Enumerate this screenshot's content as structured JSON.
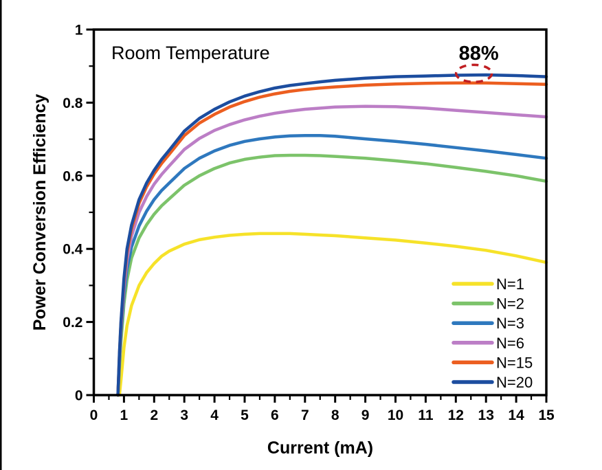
{
  "figure": {
    "background_color": "#ffffff",
    "left_edge_bar_color": "#000000",
    "axis_color": "#000000"
  },
  "chart_data": {
    "type": "line",
    "title": "",
    "xlabel": "Current (mA)",
    "ylabel": "Power Conversion Efficiency",
    "xlim": [
      0,
      15
    ],
    "ylim": [
      0,
      1
    ],
    "grid": false,
    "x_major_ticks": [
      0,
      1,
      2,
      3,
      4,
      5,
      6,
      7,
      8,
      9,
      10,
      11,
      12,
      13,
      14,
      15
    ],
    "x_tick_labels": [
      "0",
      "1",
      "2",
      "3",
      "4",
      "5",
      "6",
      "7",
      "8",
      "9",
      "10",
      "11",
      "12",
      "13",
      "14",
      "15"
    ],
    "x_minor_ticks": [
      0.5,
      1.5,
      2.5,
      3.5,
      4.5,
      5.5,
      6.5,
      7.5,
      8.5,
      9.5,
      10.5,
      11.5,
      12.5,
      13.5,
      14.5
    ],
    "y_major_ticks": [
      0,
      0.2,
      0.4,
      0.6,
      0.8,
      1
    ],
    "y_tick_labels": [
      "0",
      "0.2",
      "0.4",
      "0.6",
      "0.8",
      "1"
    ],
    "y_minor_ticks": [
      0.1,
      0.3,
      0.5,
      0.7,
      0.9
    ],
    "legend_position": "lower-right-inside",
    "annotations": {
      "room_temperature": "Room Temperature",
      "efficiency_label": "88%",
      "efficiency_point": {
        "x": 12.6,
        "y": 0.88
      },
      "callout_color": "#c01f23"
    },
    "x": [
      0.8,
      0.85,
      0.9,
      1.0,
      1.1,
      1.25,
      1.5,
      1.75,
      2.0,
      2.25,
      2.5,
      3.0,
      3.5,
      4.0,
      4.5,
      5.0,
      5.5,
      6.0,
      6.5,
      7.0,
      7.5,
      8.0,
      9.0,
      10,
      11,
      12,
      13,
      14,
      15
    ],
    "series": [
      {
        "name": "N=1",
        "color": "#f6e229",
        "values": [
          0,
          0,
          0.04,
          0.13,
          0.19,
          0.245,
          0.3,
          0.335,
          0.36,
          0.38,
          0.394,
          0.413,
          0.425,
          0.432,
          0.437,
          0.44,
          0.442,
          0.442,
          0.442,
          0.44,
          0.438,
          0.436,
          0.43,
          0.424,
          0.416,
          0.407,
          0.396,
          0.381,
          0.363
        ]
      },
      {
        "name": "N=2",
        "color": "#7cc36a",
        "values": [
          0,
          0.075,
          0.145,
          0.25,
          0.315,
          0.375,
          0.43,
          0.466,
          0.495,
          0.518,
          0.537,
          0.574,
          0.6,
          0.62,
          0.635,
          0.645,
          0.651,
          0.655,
          0.656,
          0.656,
          0.655,
          0.653,
          0.648,
          0.641,
          0.633,
          0.623,
          0.612,
          0.6,
          0.585
        ]
      },
      {
        "name": "N=3",
        "color": "#2e78be",
        "values": [
          0,
          0.09,
          0.17,
          0.275,
          0.345,
          0.405,
          0.463,
          0.503,
          0.535,
          0.56,
          0.58,
          0.62,
          0.648,
          0.668,
          0.683,
          0.694,
          0.701,
          0.706,
          0.709,
          0.71,
          0.71,
          0.708,
          0.701,
          0.694,
          0.686,
          0.677,
          0.668,
          0.658,
          0.648
        ]
      },
      {
        "name": "N=6",
        "color": "#bc7ec6",
        "values": [
          0,
          0.1,
          0.185,
          0.295,
          0.37,
          0.435,
          0.5,
          0.543,
          0.577,
          0.604,
          0.627,
          0.672,
          0.702,
          0.724,
          0.74,
          0.753,
          0.763,
          0.771,
          0.777,
          0.782,
          0.785,
          0.788,
          0.79,
          0.789,
          0.785,
          0.779,
          0.773,
          0.767,
          0.761
        ]
      },
      {
        "name": "N=15",
        "color": "#ec5e20",
        "values": [
          0,
          0.11,
          0.195,
          0.31,
          0.39,
          0.455,
          0.525,
          0.57,
          0.605,
          0.634,
          0.659,
          0.71,
          0.744,
          0.768,
          0.788,
          0.803,
          0.815,
          0.824,
          0.831,
          0.836,
          0.84,
          0.843,
          0.848,
          0.851,
          0.853,
          0.854,
          0.854,
          0.852,
          0.85
        ]
      },
      {
        "name": "N=20",
        "color": "#1c4d9f",
        "values": [
          0,
          0.115,
          0.2,
          0.32,
          0.4,
          0.465,
          0.535,
          0.58,
          0.615,
          0.645,
          0.67,
          0.722,
          0.757,
          0.782,
          0.802,
          0.818,
          0.83,
          0.84,
          0.847,
          0.852,
          0.857,
          0.861,
          0.867,
          0.871,
          0.873,
          0.875,
          0.876,
          0.874,
          0.871
        ]
      }
    ]
  }
}
